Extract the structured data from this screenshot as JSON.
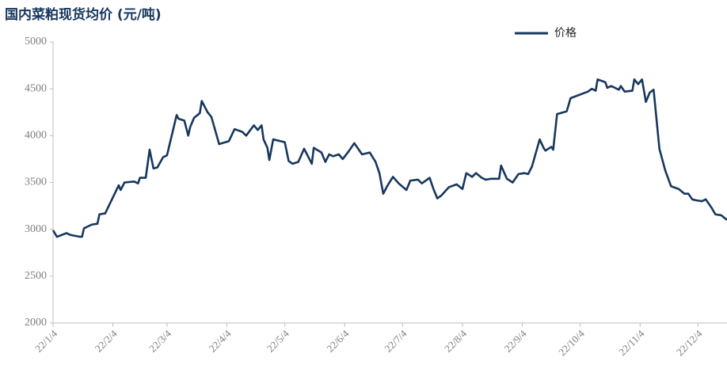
{
  "chart_data": {
    "type": "line",
    "title": "国内菜粕现货均价 (元/吨)",
    "x": [
      "22/1/4",
      "22/1/6",
      "22/1/11",
      "22/1/13",
      "22/1/18",
      "22/1/19",
      "22/1/20",
      "22/1/24",
      "22/1/27",
      "22/1/28",
      "22/1/31",
      "22/2/7",
      "22/2/8",
      "22/2/10",
      "22/2/15",
      "22/2/17",
      "22/2/18",
      "22/2/21",
      "22/2/23",
      "22/2/25",
      "22/2/27",
      "22/3/2",
      "22/3/4",
      "22/3/9",
      "22/3/10",
      "22/3/13",
      "22/3/15",
      "22/3/16",
      "22/3/18",
      "22/3/21",
      "22/3/22",
      "22/3/25",
      "22/3/27",
      "22/3/31",
      "22/4/5",
      "22/4/8",
      "22/4/12",
      "22/4/14",
      "22/4/18",
      "22/4/20",
      "22/4/22",
      "22/4/23",
      "22/4/25",
      "22/4/26",
      "22/4/28",
      "22/5/4",
      "22/5/6",
      "22/5/8",
      "22/5/11",
      "22/5/14",
      "22/5/18",
      "22/5/19",
      "22/5/23",
      "22/5/25",
      "22/5/27",
      "22/5/29",
      "22/6/1",
      "22/6/3",
      "22/6/6",
      "22/6/9",
      "22/6/13",
      "22/6/17",
      "22/6/20",
      "22/6/22",
      "22/6/24",
      "22/6/26",
      "22/6/29",
      "22/7/2",
      "22/7/6",
      "22/7/8",
      "22/7/12",
      "22/7/14",
      "22/7/18",
      "22/7/20",
      "22/7/22",
      "22/7/24",
      "22/7/28",
      "22/8/1",
      "22/8/4",
      "22/8/6",
      "22/8/9",
      "22/8/11",
      "22/8/14",
      "22/8/16",
      "22/8/19",
      "22/8/23",
      "22/8/24",
      "22/8/27",
      "22/8/30",
      "22/9/2",
      "22/9/5",
      "22/9/7",
      "22/9/9",
      "22/9/13",
      "22/9/15",
      "22/9/16",
      "22/9/19",
      "22/9/20",
      "22/9/22",
      "22/9/27",
      "22/9/29",
      "22/10/8",
      "22/10/10",
      "22/10/12",
      "22/10/13",
      "22/10/17",
      "22/10/18",
      "22/10/20",
      "22/10/24",
      "22/10/25",
      "22/10/27",
      "22/10/31",
      "22/11/1",
      "22/11/3",
      "22/11/5",
      "22/11/7",
      "22/11/9",
      "22/11/11",
      "22/11/14",
      "22/11/17",
      "22/11/20",
      "22/11/24",
      "22/11/27",
      "22/11/29",
      "22/12/1",
      "22/12/3",
      "22/12/6",
      "22/12/8",
      "22/12/11",
      "22/12/13",
      "22/12/16",
      "22/12/19"
    ],
    "series": [
      {
        "name": "价格",
        "color": "#17375e",
        "values": [
          2990,
          2920,
          2960,
          2940,
          2920,
          2920,
          3010,
          3050,
          3060,
          3160,
          3170,
          3470,
          3420,
          3500,
          3510,
          3490,
          3550,
          3550,
          3850,
          3650,
          3660,
          3770,
          3790,
          4220,
          4180,
          4160,
          4000,
          4090,
          4190,
          4240,
          4370,
          4250,
          4200,
          3910,
          3940,
          4070,
          4040,
          4000,
          4110,
          4060,
          4110,
          3960,
          3870,
          3740,
          3960,
          3930,
          3730,
          3700,
          3720,
          3860,
          3700,
          3870,
          3820,
          3720,
          3800,
          3780,
          3800,
          3750,
          3830,
          3920,
          3800,
          3820,
          3720,
          3600,
          3380,
          3460,
          3560,
          3490,
          3420,
          3520,
          3530,
          3490,
          3550,
          3430,
          3330,
          3360,
          3450,
          3480,
          3430,
          3600,
          3560,
          3600,
          3550,
          3530,
          3540,
          3540,
          3680,
          3540,
          3500,
          3590,
          3600,
          3590,
          3670,
          3960,
          3870,
          3840,
          3880,
          3850,
          4230,
          4260,
          4400,
          4470,
          4500,
          4480,
          4600,
          4570,
          4510,
          4530,
          4490,
          4530,
          4470,
          4480,
          4600,
          4550,
          4600,
          4360,
          4460,
          4490,
          3860,
          3630,
          3460,
          3430,
          3380,
          3380,
          3320,
          3310,
          3300,
          3320,
          3230,
          3160,
          3150,
          3100
        ]
      }
    ],
    "xlim": [
      "22/1/4",
      "22/12/19"
    ],
    "xticks": [
      "22/1/4",
      "22/2/4",
      "22/3/4",
      "22/4/4",
      "22/5/4",
      "22/6/4",
      "22/7/4",
      "22/8/4",
      "22/9/4",
      "22/10/4",
      "22/11/4",
      "22/12/4"
    ],
    "ylim": [
      2000,
      5000
    ],
    "yticks": [
      2000,
      2500,
      3000,
      3500,
      4000,
      4500,
      5000
    ],
    "legend": "top-right"
  }
}
